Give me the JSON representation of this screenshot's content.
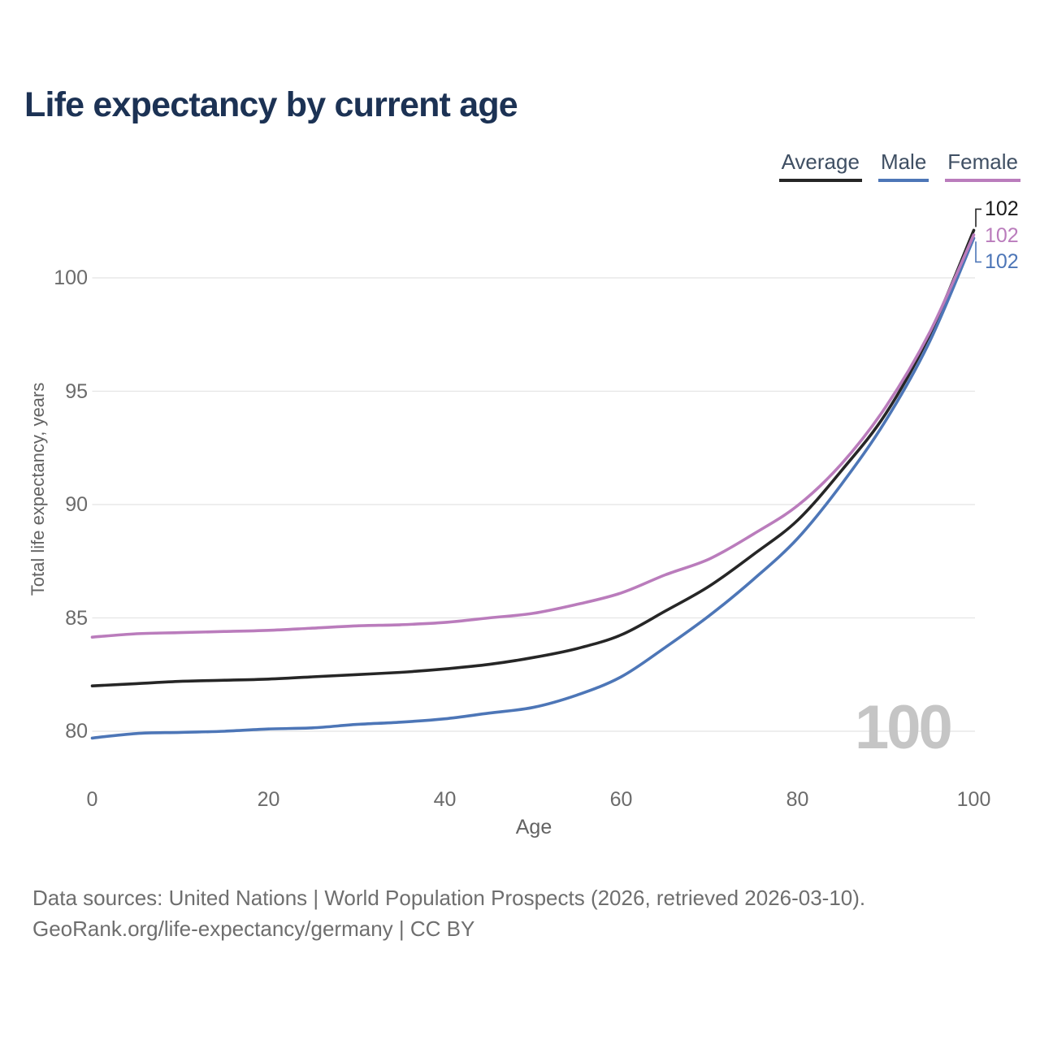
{
  "title": "Life expectancy by current age",
  "legend": [
    {
      "label": "Average",
      "color": "#262626"
    },
    {
      "label": "Male",
      "color": "#4d76b7"
    },
    {
      "label": "Female",
      "color": "#ba7cbc"
    }
  ],
  "watermark": "100",
  "footer": {
    "line1": "Data sources: United Nations | World Population Prospects (2026, retrieved 2026-03-10).",
    "line2": "GeoRank.org/life-expectancy/germany | CC BY"
  },
  "chart_data": {
    "type": "line",
    "title": "Life expectancy by current age",
    "xlabel": "Age",
    "ylabel": "Total life expectancy, years",
    "x_ticks": [
      0,
      20,
      40,
      60,
      80,
      100
    ],
    "y_ticks": [
      100,
      95,
      90,
      85,
      80
    ],
    "xlim": [
      0,
      100
    ],
    "ylim": [
      79.5,
      102.5
    ],
    "grid": "horizontal-only",
    "legend_position": "top-right",
    "gridline_color": "#e4e4e4",
    "ages": [
      0,
      5,
      10,
      15,
      20,
      25,
      30,
      35,
      40,
      45,
      50,
      55,
      60,
      65,
      70,
      75,
      80,
      85,
      90,
      95,
      100
    ],
    "series": [
      {
        "name": "Average",
        "color": "#262626",
        "end_label": "102",
        "values": [
          82.0,
          82.1,
          82.2,
          82.25,
          82.3,
          82.4,
          82.5,
          82.6,
          82.75,
          82.95,
          83.25,
          83.65,
          84.25,
          85.3,
          86.4,
          87.8,
          89.3,
          91.5,
          94.0,
          97.5,
          102.1
        ]
      },
      {
        "name": "Male",
        "color": "#4d76b7",
        "end_label": "102",
        "values": [
          79.7,
          79.9,
          79.95,
          80.0,
          80.1,
          80.15,
          80.3,
          80.4,
          80.55,
          80.8,
          81.05,
          81.6,
          82.4,
          83.7,
          85.1,
          86.7,
          88.5,
          90.9,
          93.7,
          97.2,
          101.75
        ]
      },
      {
        "name": "Female",
        "color": "#ba7cbc",
        "end_label": "102",
        "values": [
          84.15,
          84.3,
          84.35,
          84.4,
          84.45,
          84.55,
          84.65,
          84.7,
          84.8,
          85.0,
          85.2,
          85.6,
          86.1,
          86.9,
          87.6,
          88.7,
          89.95,
          91.8,
          94.3,
          97.6,
          101.9
        ]
      }
    ]
  }
}
